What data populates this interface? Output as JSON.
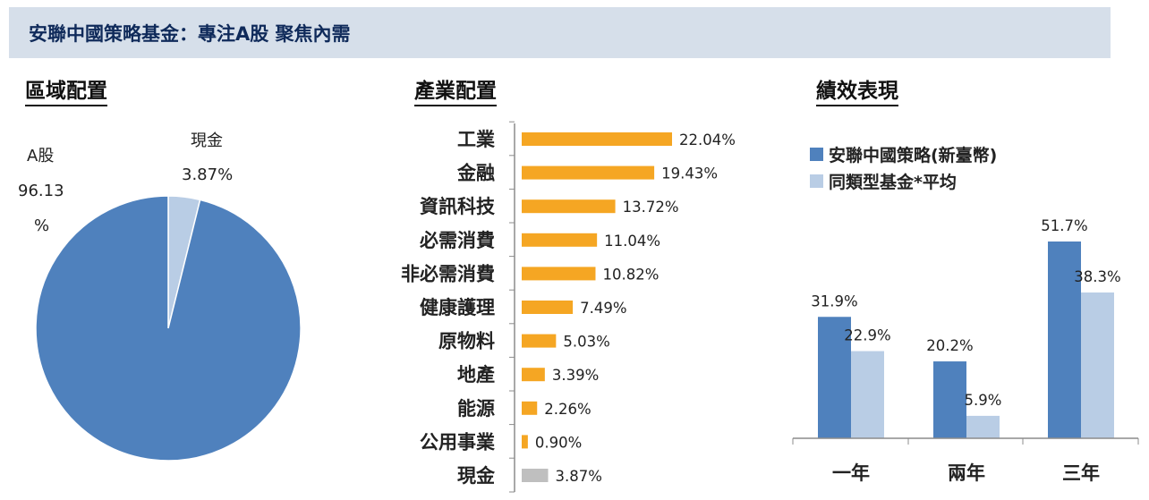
{
  "header": {
    "title": "安聯中國策略基金：專注A股  聚焦內需"
  },
  "sections": {
    "region": "區域配置",
    "industry": "產業配置",
    "performance": "績效表現"
  },
  "colors": {
    "dark_blue": "#4f81bd",
    "light_blue": "#b9cde5",
    "orange": "#f5a623",
    "gray": "#bfbfbf"
  },
  "chart_data": [
    {
      "type": "pie",
      "title": "區域配置",
      "slices": [
        {
          "label_lines": [
            "A股",
            "96.13",
            "%"
          ],
          "value": 96.13,
          "color": "#4f81bd"
        },
        {
          "label_lines": [
            "現金",
            "3.87%"
          ],
          "value": 3.87,
          "color": "#b9cde5"
        }
      ]
    },
    {
      "type": "bar",
      "orientation": "horizontal",
      "title": "產業配置",
      "categories": [
        "工業",
        "金融",
        "資訊科技",
        "必需消費",
        "非必需消費",
        "健康護理",
        "原物料",
        "地產",
        "能源",
        "公用事業",
        "現金"
      ],
      "values": [
        22.04,
        19.43,
        13.72,
        11.04,
        10.82,
        7.49,
        5.03,
        3.39,
        2.26,
        0.9,
        3.87
      ],
      "value_labels": [
        "22.04%",
        "19.43%",
        "13.72%",
        "11.04%",
        "10.82%",
        "7.49%",
        "5.03%",
        "3.39%",
        "2.26%",
        "0.90%",
        "3.87%"
      ],
      "colors": [
        "#f5a623",
        "#f5a623",
        "#f5a623",
        "#f5a623",
        "#f5a623",
        "#f5a623",
        "#f5a623",
        "#f5a623",
        "#f5a623",
        "#f5a623",
        "#bfbfbf"
      ]
    },
    {
      "type": "bar",
      "title": "績效表現",
      "categories": [
        "一年",
        "兩年",
        "三年"
      ],
      "series": [
        {
          "name": "安聯中國策略(新臺幣)",
          "values": [
            31.9,
            20.2,
            51.7
          ],
          "labels": [
            "31.9%",
            "20.2%",
            "51.7%"
          ],
          "color": "#4f81bd"
        },
        {
          "name": "同類型基金*平均",
          "values": [
            22.9,
            5.9,
            38.3
          ],
          "labels": [
            "22.9%",
            "5.9%",
            "38.3%"
          ],
          "color": "#b9cde5"
        }
      ],
      "legend": "top-left"
    }
  ]
}
